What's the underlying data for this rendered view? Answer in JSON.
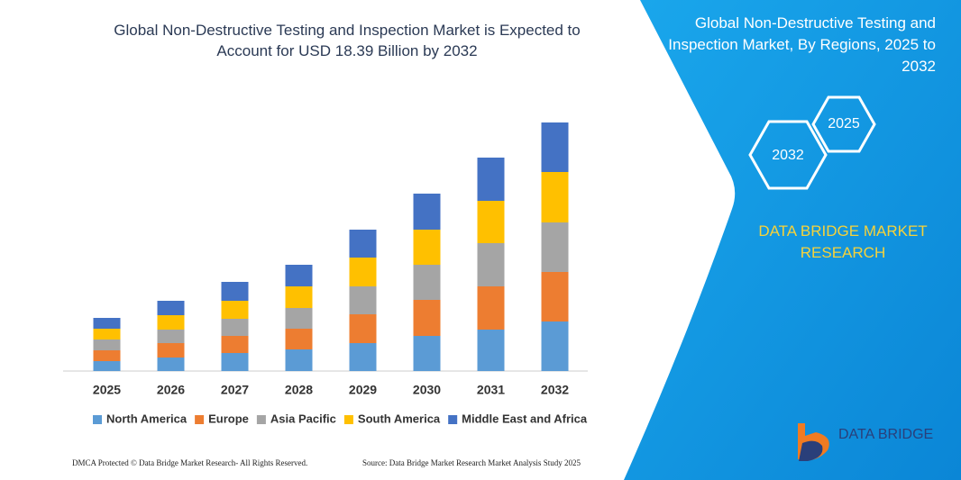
{
  "chart_data": {
    "type": "bar",
    "stacked": true,
    "title": "Global Non-Destructive Testing and Inspection Market is Expected to Account for USD 18.39 Billion by 2032",
    "categories": [
      "2025",
      "2026",
      "2027",
      "2028",
      "2029",
      "2030",
      "2031",
      "2032"
    ],
    "series": [
      {
        "name": "North America",
        "color": "#5b9bd5",
        "values": [
          11,
          15,
          20,
          24,
          31,
          39,
          46,
          55
        ]
      },
      {
        "name": "Europe",
        "color": "#ed7d31",
        "values": [
          12,
          16,
          19,
          23,
          32,
          40,
          48,
          55
        ]
      },
      {
        "name": "Asia Pacific",
        "color": "#a5a5a5",
        "values": [
          12,
          15,
          19,
          23,
          31,
          39,
          48,
          55
        ]
      },
      {
        "name": "South America",
        "color": "#ffc000",
        "values": [
          12,
          16,
          20,
          24,
          32,
          39,
          47,
          56
        ]
      },
      {
        "name": "Middle East and Africa",
        "color": "#4472c4",
        "values": [
          12,
          16,
          21,
          24,
          31,
          40,
          48,
          55
        ]
      }
    ]
  },
  "panel": {
    "title": "Global Non-Destructive Testing and Inspection Market, By Regions, 2025 to 2032",
    "hex_start": "2032",
    "hex_end": "2025",
    "brand": "DATA BRIDGE MARKET RESEARCH"
  },
  "footer": {
    "dmca": "DMCA Protected © Data Bridge Market Research- All Rights Reserved.",
    "source": "Source: Data Bridge Market Research Market Analysis Study 2025"
  },
  "logo": "DATA BRIDGE"
}
